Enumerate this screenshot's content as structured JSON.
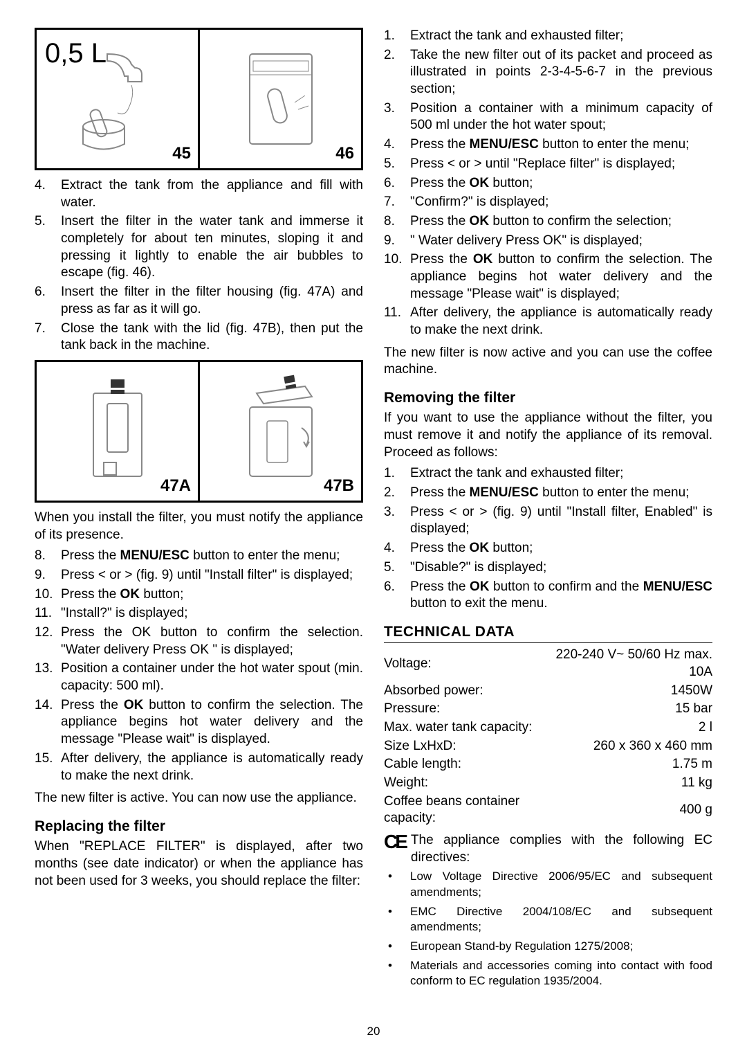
{
  "figbox1": {
    "bigtext": "0,5 L",
    "left_label": "45",
    "right_label": "46"
  },
  "left_list1": [
    {
      "n": "4.",
      "t": "Extract the tank from the appliance and fill with water."
    },
    {
      "n": "5.",
      "t": "Insert the filter in the water tank and immerse it completely for about ten minutes, sloping it and pressing it lightly to enable the air bubbles to escape (fig. 46)."
    },
    {
      "n": "6.",
      "t": "Insert the filter in the filter housing (fig. 47A) and press as far as it will go."
    },
    {
      "n": "7.",
      "t": "Close the tank with the lid (fig. 47B), then put the tank back in the machine."
    }
  ],
  "figbox2": {
    "left_label": "47A",
    "right_label": "47B"
  },
  "left_para1": "When you install the filter, you must notify the appliance of its presence.",
  "left_list2": [
    {
      "n": "8.",
      "t": "Press the <b>MENU/ESC</b> button to enter the menu;"
    },
    {
      "n": "9.",
      "t": "Press < or > (fig. 9) until \"Install filter\" is displayed;"
    },
    {
      "n": "10.",
      "t": "Press the <b>OK</b> button;"
    },
    {
      "n": "11.",
      "t": "\"Install?\" is displayed;"
    },
    {
      "n": "12.",
      "t": "Press the OK button to confirm the selection. \"Water delivery Press OK \" is displayed;"
    },
    {
      "n": "13.",
      "t": "Position a container under the hot water spout (min. capacity: 500 ml)."
    },
    {
      "n": "14.",
      "t": "Press the <b>OK</b> button to confirm the selection. The appliance begins hot water delivery and the message \"Please wait\" is displayed."
    },
    {
      "n": "15.",
      "t": "After delivery, the appliance is automatically ready to make the next drink."
    }
  ],
  "left_para2": "The new filter is active. You can now use the appliance.",
  "h_replacing": "Replacing the filter",
  "left_para3": "When \"REPLACE FILTER\" is displayed, after two months (see date indicator) or when the appliance has not been used for 3 weeks, you should replace the filter:",
  "right_list1": [
    {
      "n": "1.",
      "t": "Extract the tank and exhausted filter;"
    },
    {
      "n": "2.",
      "t": "Take the new filter out of its packet and proceed as illustrated in points 2-3-4-5-6-7 in the previous section;"
    },
    {
      "n": "3.",
      "t": "Position a container with a minimum capacity of 500 ml under the hot water spout;"
    },
    {
      "n": "4.",
      "t": "Press the <b>MENU/ESC</b> button to enter the menu;"
    },
    {
      "n": "5.",
      "t": "Press < or > until \"Replace filter\" is displayed;"
    },
    {
      "n": "6.",
      "t": "Press the <b>OK</b> button;"
    },
    {
      "n": "7.",
      "t": "\"Confirm?\" is displayed;"
    },
    {
      "n": "8.",
      "t": "Press the <b>OK</b> button to confirm the selection;"
    },
    {
      "n": "9.",
      "t": "\" Water delivery Press OK\" is displayed;"
    },
    {
      "n": "10.",
      "t": "Press the <b>OK</b> button to confirm the selection. The appliance begins hot water delivery and the message \"Please wait\" is displayed;"
    },
    {
      "n": "11.",
      "t": "After delivery, the appliance is automatically ready to make the next drink."
    }
  ],
  "right_para1": "The new filter is now active and you can use the coffee machine.",
  "h_removing": "Removing the filter",
  "right_para2": "If you want to use the appliance without the filter, you must remove it and notify the appliance of its removal. Proceed as follows:",
  "right_list2": [
    {
      "n": "1.",
      "t": "Extract the tank and exhausted filter;"
    },
    {
      "n": "2.",
      "t": "Press the <b>MENU/ESC</b> button to enter the menu;"
    },
    {
      "n": "3.",
      "t": "Press < or > (fig. 9) until \"Install filter, Enabled\" is displayed;"
    },
    {
      "n": "4.",
      "t": "Press the <b>OK</b> button;"
    },
    {
      "n": "5.",
      "t": "\"Disable?\" is displayed;"
    },
    {
      "n": "6.",
      "t": "Press the <b>OK</b> button to confirm and the <b>MENU/ESC</b> button to exit the menu."
    }
  ],
  "h_tech": "TECHNICAL DATA",
  "tech_rows": [
    [
      "Voltage:",
      "220-240 V~ 50/60 Hz max. 10A"
    ],
    [
      "Absorbed power:",
      "1450W"
    ],
    [
      "Pressure:",
      "15 bar"
    ],
    [
      "Max. water tank capacity:",
      "2 l"
    ],
    [
      "Size LxHxD:",
      "260 x 360 x 460  mm"
    ],
    [
      "Cable length:",
      "1.75 m"
    ],
    [
      "Weight:",
      "11 kg"
    ],
    [
      "Coffee beans container capacity:",
      "400 g"
    ]
  ],
  "ce_text": "The appliance complies with the following EC directives:",
  "directives": [
    "Low Voltage Directive 2006/95/EC and subsequent amendments;",
    "EMC Directive 2004/108/EC and subsequent amendments;",
    "European Stand-by Regulation 1275/2008;",
    "Materials and accessories coming into contact with food conform to EC regulation 1935/2004."
  ],
  "page_number": "20"
}
